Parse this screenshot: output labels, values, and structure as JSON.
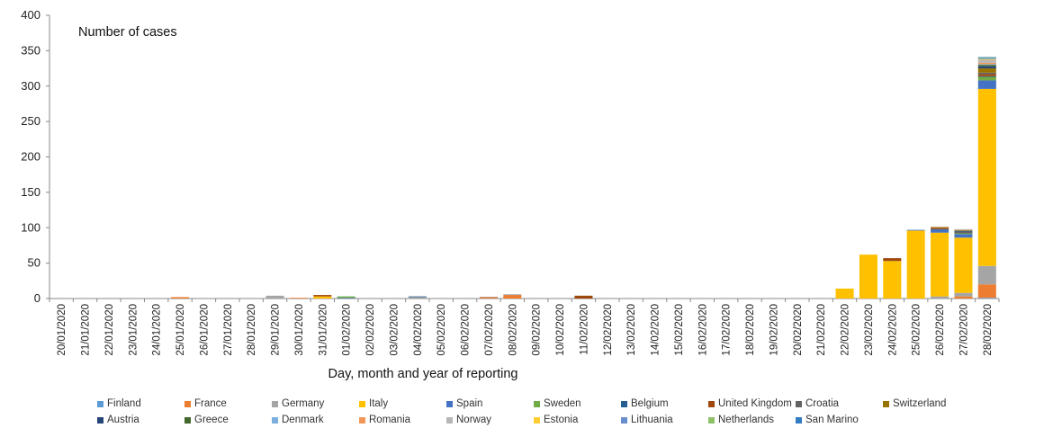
{
  "chart_data": {
    "type": "bar",
    "stacked": true,
    "title": "Number of cases",
    "xlabel": "Day, month and year of reporting",
    "ylabel": "",
    "ylim": [
      0,
      400
    ],
    "yticks": [
      0,
      50,
      100,
      150,
      200,
      250,
      300,
      350,
      400
    ],
    "grid": false,
    "legend_position": "bottom",
    "categories": [
      "20/01/2020",
      "21/01/2020",
      "22/01/2020",
      "23/01/2020",
      "24/01/2020",
      "25/01/2020",
      "26/01/2020",
      "27/01/2020",
      "28/01/2020",
      "29/01/2020",
      "30/01/2020",
      "31/01/2020",
      "01/02/2020",
      "02/02/2020",
      "03/02/2020",
      "04/02/2020",
      "05/02/2020",
      "06/02/2020",
      "07/02/2020",
      "08/02/2020",
      "09/02/2020",
      "10/02/2020",
      "11/02/2020",
      "12/02/2020",
      "13/02/2020",
      "14/02/2020",
      "15/02/2020",
      "16/02/2020",
      "17/02/2020",
      "18/02/2020",
      "19/02/2020",
      "20/02/2020",
      "21/02/2020",
      "22/02/2020",
      "23/02/2020",
      "24/02/2020",
      "25/02/2020",
      "26/02/2020",
      "27/02/2020",
      "28/02/2020"
    ],
    "series": [
      {
        "name": "Finland",
        "color": "#5B9BD5",
        "values": [
          0,
          0,
          0,
          0,
          0,
          0,
          0,
          0,
          0,
          0,
          0,
          0,
          0,
          0,
          0,
          0,
          0,
          0,
          0,
          0,
          0,
          0,
          0,
          0,
          0,
          0,
          0,
          0,
          0,
          0,
          0,
          0,
          0,
          0,
          0,
          0,
          0,
          0,
          0,
          1
        ]
      },
      {
        "name": "France",
        "color": "#ED7D31",
        "values": [
          0,
          0,
          0,
          0,
          0,
          2,
          0,
          0,
          0,
          0,
          1,
          0,
          0,
          0,
          0,
          0,
          0,
          0,
          1,
          5,
          0,
          0,
          0,
          0,
          0,
          0,
          0,
          0,
          0,
          0,
          0,
          0,
          0,
          0,
          0,
          0,
          0,
          0,
          3,
          19
        ]
      },
      {
        "name": "Germany",
        "color": "#A5A5A5",
        "values": [
          0,
          0,
          0,
          0,
          0,
          0,
          0,
          0,
          0,
          4,
          0,
          0,
          0,
          0,
          0,
          2,
          0,
          0,
          0,
          1,
          0,
          0,
          0,
          0,
          0,
          0,
          0,
          0,
          0,
          0,
          0,
          0,
          0,
          0,
          0,
          0,
          0,
          3,
          5,
          26
        ]
      },
      {
        "name": "Italy",
        "color": "#FFC000",
        "values": [
          0,
          0,
          0,
          0,
          0,
          0,
          0,
          0,
          0,
          0,
          0,
          3,
          0,
          0,
          0,
          0,
          0,
          0,
          0,
          0,
          0,
          0,
          0,
          0,
          0,
          0,
          0,
          0,
          0,
          0,
          0,
          0,
          0,
          14,
          62,
          53,
          96,
          90,
          78,
          250
        ]
      },
      {
        "name": "Spain",
        "color": "#4472C4",
        "values": [
          0,
          0,
          0,
          0,
          0,
          0,
          0,
          0,
          0,
          0,
          0,
          0,
          1,
          0,
          0,
          0,
          0,
          0,
          0,
          0,
          0,
          0,
          0,
          0,
          0,
          0,
          0,
          0,
          0,
          0,
          0,
          0,
          0,
          0,
          0,
          0,
          1,
          4,
          5,
          12
        ]
      },
      {
        "name": "Sweden",
        "color": "#70AD47",
        "values": [
          0,
          0,
          0,
          0,
          0,
          0,
          0,
          0,
          0,
          0,
          0,
          0,
          2,
          0,
          0,
          0,
          0,
          0,
          0,
          0,
          0,
          0,
          0,
          0,
          0,
          0,
          0,
          0,
          0,
          0,
          0,
          0,
          0,
          0,
          0,
          0,
          0,
          0,
          1,
          5
        ]
      },
      {
        "name": "Belgium",
        "color": "#255E91",
        "values": [
          0,
          0,
          0,
          0,
          0,
          0,
          0,
          0,
          0,
          0,
          0,
          0,
          0,
          0,
          0,
          1,
          0,
          0,
          0,
          0,
          0,
          0,
          0,
          0,
          0,
          0,
          0,
          0,
          0,
          0,
          0,
          0,
          0,
          0,
          0,
          0,
          0,
          1,
          0,
          1
        ]
      },
      {
        "name": "United Kingdom",
        "color": "#9E480E",
        "values": [
          0,
          0,
          0,
          0,
          0,
          0,
          0,
          0,
          0,
          0,
          0,
          2,
          0,
          0,
          0,
          0,
          0,
          0,
          1,
          0,
          0,
          0,
          4,
          0,
          0,
          0,
          0,
          0,
          0,
          0,
          0,
          0,
          0,
          0,
          0,
          4,
          0,
          2,
          0,
          3
        ]
      },
      {
        "name": "Croatia",
        "color": "#636363",
        "values": [
          0,
          0,
          0,
          0,
          0,
          0,
          0,
          0,
          0,
          0,
          0,
          0,
          0,
          0,
          0,
          0,
          0,
          0,
          0,
          0,
          0,
          0,
          0,
          0,
          0,
          0,
          0,
          0,
          0,
          0,
          0,
          0,
          0,
          0,
          0,
          0,
          0,
          0,
          2,
          2
        ]
      },
      {
        "name": "Switzerland",
        "color": "#997300",
        "values": [
          0,
          0,
          0,
          0,
          0,
          0,
          0,
          0,
          0,
          0,
          0,
          0,
          0,
          0,
          0,
          0,
          0,
          0,
          0,
          0,
          0,
          0,
          0,
          0,
          0,
          0,
          0,
          0,
          0,
          0,
          0,
          0,
          0,
          0,
          0,
          0,
          0,
          1,
          0,
          6
        ]
      },
      {
        "name": "Austria",
        "color": "#264478",
        "values": [
          0,
          0,
          0,
          0,
          0,
          0,
          0,
          0,
          0,
          0,
          0,
          0,
          0,
          0,
          0,
          0,
          0,
          0,
          0,
          0,
          0,
          0,
          0,
          0,
          0,
          0,
          0,
          0,
          0,
          0,
          0,
          0,
          0,
          0,
          0,
          0,
          0,
          0,
          1,
          3
        ]
      },
      {
        "name": "Greece",
        "color": "#43682B",
        "values": [
          0,
          0,
          0,
          0,
          0,
          0,
          0,
          0,
          0,
          0,
          0,
          0,
          0,
          0,
          0,
          0,
          0,
          0,
          0,
          0,
          0,
          0,
          0,
          0,
          0,
          0,
          0,
          0,
          0,
          0,
          0,
          0,
          0,
          0,
          0,
          0,
          0,
          0,
          1,
          2
        ]
      },
      {
        "name": "Denmark",
        "color": "#7CAFDD",
        "values": [
          0,
          0,
          0,
          0,
          0,
          0,
          0,
          0,
          0,
          0,
          0,
          0,
          0,
          0,
          0,
          0,
          0,
          0,
          0,
          0,
          0,
          0,
          0,
          0,
          0,
          0,
          0,
          0,
          0,
          0,
          0,
          0,
          0,
          0,
          0,
          0,
          0,
          0,
          0,
          1
        ]
      },
      {
        "name": "Romania",
        "color": "#F1975A",
        "values": [
          0,
          0,
          0,
          0,
          0,
          0,
          0,
          0,
          0,
          0,
          0,
          0,
          0,
          0,
          0,
          0,
          0,
          0,
          0,
          0,
          0,
          0,
          0,
          0,
          0,
          0,
          0,
          0,
          0,
          0,
          0,
          0,
          0,
          0,
          0,
          0,
          0,
          0,
          1,
          2
        ]
      },
      {
        "name": "Norway",
        "color": "#B7B7B7",
        "values": [
          0,
          0,
          0,
          0,
          0,
          0,
          0,
          0,
          0,
          0,
          0,
          0,
          0,
          0,
          0,
          0,
          0,
          0,
          0,
          0,
          0,
          0,
          0,
          0,
          0,
          0,
          0,
          0,
          0,
          0,
          0,
          0,
          0,
          0,
          0,
          0,
          0,
          0,
          1,
          4
        ]
      },
      {
        "name": "Estonia",
        "color": "#FFCD33",
        "values": [
          0,
          0,
          0,
          0,
          0,
          0,
          0,
          0,
          0,
          0,
          0,
          0,
          0,
          0,
          0,
          0,
          0,
          0,
          0,
          0,
          0,
          0,
          0,
          0,
          0,
          0,
          0,
          0,
          0,
          0,
          0,
          0,
          0,
          0,
          0,
          0,
          0,
          0,
          0,
          1
        ]
      },
      {
        "name": "Lithuania",
        "color": "#698ED0",
        "values": [
          0,
          0,
          0,
          0,
          0,
          0,
          0,
          0,
          0,
          0,
          0,
          0,
          0,
          0,
          0,
          0,
          0,
          0,
          0,
          0,
          0,
          0,
          0,
          0,
          0,
          0,
          0,
          0,
          0,
          0,
          0,
          0,
          0,
          0,
          0,
          0,
          0,
          0,
          0,
          1
        ]
      },
      {
        "name": "Netherlands",
        "color": "#8CC168",
        "values": [
          0,
          0,
          0,
          0,
          0,
          0,
          0,
          0,
          0,
          0,
          0,
          0,
          0,
          0,
          0,
          0,
          0,
          0,
          0,
          0,
          0,
          0,
          0,
          0,
          0,
          0,
          0,
          0,
          0,
          0,
          0,
          0,
          0,
          0,
          0,
          0,
          0,
          0,
          0,
          1
        ]
      },
      {
        "name": "San Marino",
        "color": "#327DC2",
        "values": [
          0,
          0,
          0,
          0,
          0,
          0,
          0,
          0,
          0,
          0,
          0,
          0,
          0,
          0,
          0,
          0,
          0,
          0,
          0,
          0,
          0,
          0,
          0,
          0,
          0,
          0,
          0,
          0,
          0,
          0,
          0,
          0,
          0,
          0,
          0,
          0,
          0,
          0,
          0,
          1
        ]
      }
    ]
  }
}
